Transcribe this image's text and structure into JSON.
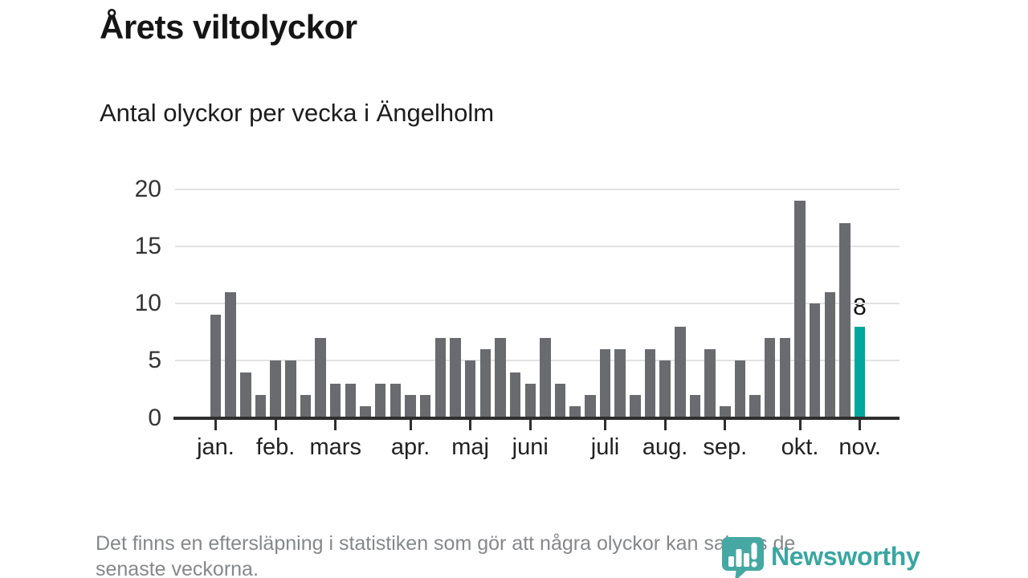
{
  "title": "Årets viltolyckor",
  "subtitle": "Antal olyckor per vecka i Ängelholm",
  "footer": {
    "line1": "Det finns en eftersläpning i statistiken som gör att några olyckor kan saknas de",
    "line2": "senaste veckorna."
  },
  "branding": {
    "wordmark": "Newsworthy",
    "logo_icon": "speech-bubble-bar-chart-icon"
  },
  "colors": {
    "bar": "#6a6b6e",
    "accent": "#00a79c",
    "logo": "#45a8a2",
    "grid": "#e2e2e2",
    "axis": "#2e2e2e"
  },
  "chart_data": {
    "type": "bar",
    "title": "Årets viltolyckor",
    "subtitle": "Antal olyckor per vecka i Ängelholm",
    "x_unit": "vecka",
    "values": [
      9,
      11,
      4,
      2,
      5,
      5,
      2,
      7,
      3,
      3,
      1,
      3,
      3,
      2,
      2,
      7,
      7,
      5,
      6,
      7,
      4,
      3,
      7,
      3,
      1,
      2,
      6,
      6,
      2,
      6,
      5,
      8,
      2,
      6,
      1,
      5,
      2,
      7,
      7,
      19,
      10,
      11,
      17,
      8
    ],
    "highlight_index": 43,
    "annotation": {
      "text": "8",
      "value": 8
    },
    "months": [
      {
        "label": "jan.",
        "week": 0
      },
      {
        "label": "feb.",
        "week": 4
      },
      {
        "label": "mars",
        "week": 8
      },
      {
        "label": "apr.",
        "week": 13
      },
      {
        "label": "maj",
        "week": 17
      },
      {
        "label": "juni",
        "week": 21
      },
      {
        "label": "juli",
        "week": 26
      },
      {
        "label": "aug.",
        "week": 30
      },
      {
        "label": "sep.",
        "week": 34
      },
      {
        "label": "okt.",
        "week": 39
      },
      {
        "label": "nov.",
        "week": 43
      }
    ],
    "yticks": [
      0,
      5,
      10,
      15,
      20
    ],
    "ylim": [
      0,
      20
    ],
    "grid": true,
    "legend": null
  }
}
